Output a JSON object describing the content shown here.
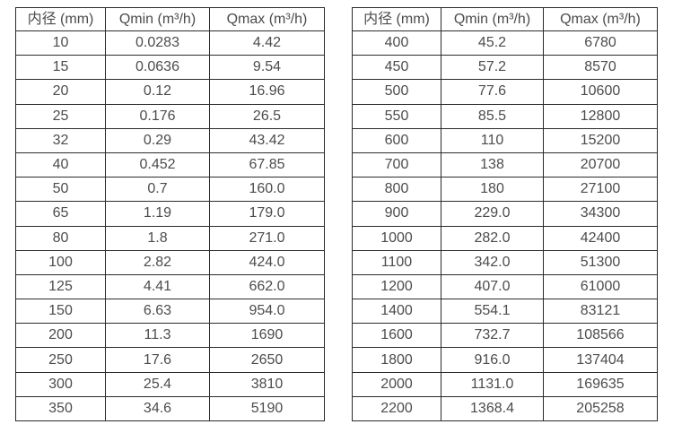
{
  "page": {
    "background_color": "#ffffff",
    "text_color": "#4c4c4c",
    "border_color": "#2b2b2b"
  },
  "tables": [
    {
      "id": "small-diameter-flow-table",
      "headers": [
        "内径 (mm)",
        "Qmin (m³/h)",
        "Qmax (m³/h)"
      ],
      "rows": [
        [
          "10",
          "0.0283",
          "4.42"
        ],
        [
          "15",
          "0.0636",
          "9.54"
        ],
        [
          "20",
          "0.12",
          "16.96"
        ],
        [
          "25",
          "0.176",
          "26.5"
        ],
        [
          "32",
          "0.29",
          "43.42"
        ],
        [
          "40",
          "0.452",
          "67.85"
        ],
        [
          "50",
          "0.7",
          "160.0"
        ],
        [
          "65",
          "1.19",
          "179.0"
        ],
        [
          "80",
          "1.8",
          "271.0"
        ],
        [
          "100",
          "2.82",
          "424.0"
        ],
        [
          "125",
          "4.41",
          "662.0"
        ],
        [
          "150",
          "6.63",
          "954.0"
        ],
        [
          "200",
          "11.3",
          "1690"
        ],
        [
          "250",
          "17.6",
          "2650"
        ],
        [
          "300",
          "25.4",
          "3810"
        ],
        [
          "350",
          "34.6",
          "5190"
        ]
      ]
    },
    {
      "id": "large-diameter-flow-table",
      "headers": [
        "内径 (mm)",
        "Qmin (m³/h)",
        "Qmax (m³/h)"
      ],
      "rows": [
        [
          "400",
          "45.2",
          "6780"
        ],
        [
          "450",
          "57.2",
          "8570"
        ],
        [
          "500",
          "77.6",
          "10600"
        ],
        [
          "550",
          "85.5",
          "12800"
        ],
        [
          "600",
          "110",
          "15200"
        ],
        [
          "700",
          "138",
          "20700"
        ],
        [
          "800",
          "180",
          "27100"
        ],
        [
          "900",
          "229.0",
          "34300"
        ],
        [
          "1000",
          "282.0",
          "42400"
        ],
        [
          "1100",
          "342.0",
          "51300"
        ],
        [
          "1200",
          "407.0",
          "61000"
        ],
        [
          "1400",
          "554.1",
          "83121"
        ],
        [
          "1600",
          "732.7",
          "108566"
        ],
        [
          "1800",
          "916.0",
          "137404"
        ],
        [
          "2000",
          "1131.0",
          "169635"
        ],
        [
          "2200",
          "1368.4",
          "205258"
        ]
      ]
    }
  ]
}
